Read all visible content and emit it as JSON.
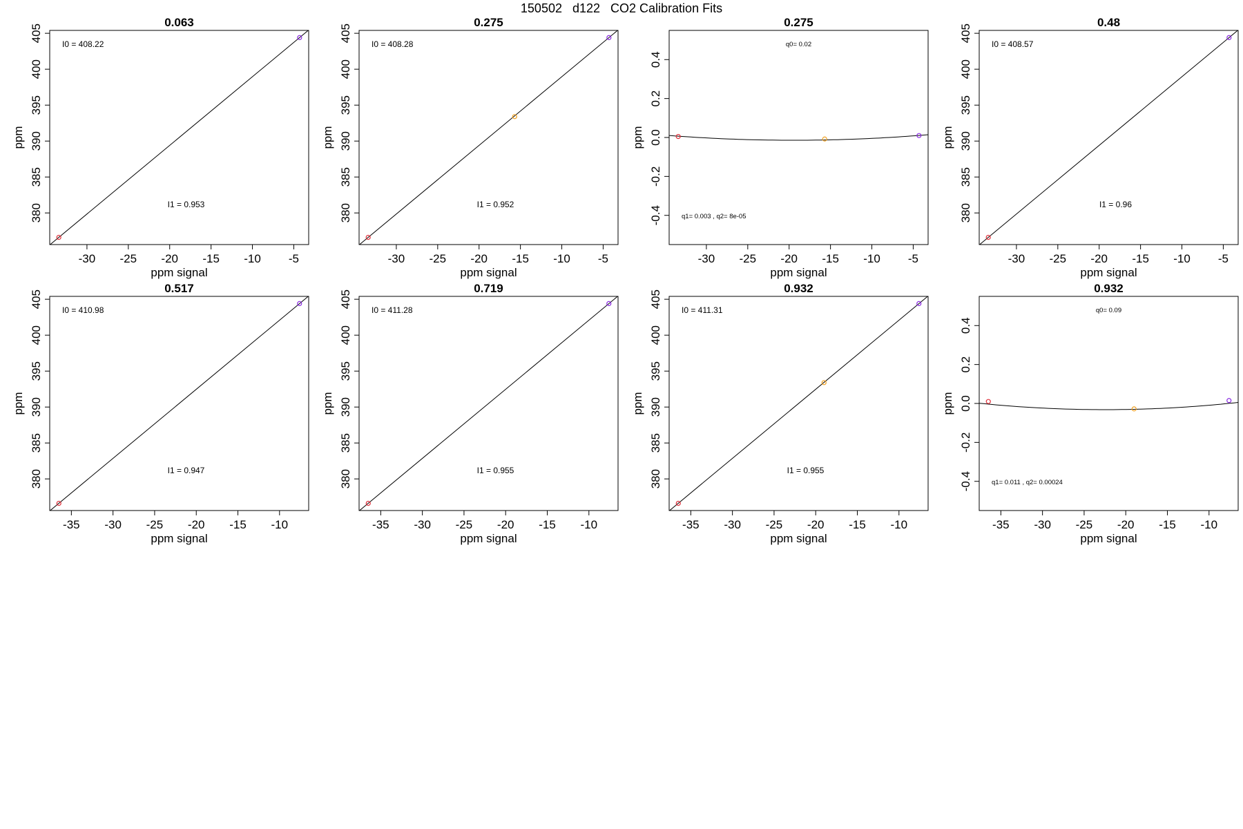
{
  "page": {
    "title": "150502   d122   CO2 Calibration Fits"
  },
  "chart_data": [
    {
      "type": "scatter",
      "kind": "linear",
      "title": "0.063",
      "xlabel": "ppm signal",
      "ylabel": "ppm",
      "xlim": [
        -34.5,
        -3.2
      ],
      "ylim": [
        375.6,
        405.4
      ],
      "xticks": [
        -30,
        -25,
        -20,
        -15,
        -10,
        -5
      ],
      "yticks": [
        380,
        385,
        390,
        395,
        400,
        405
      ],
      "points": [
        {
          "x": -33.4,
          "y": 376.6,
          "color": "#e0303a"
        },
        {
          "x": -4.3,
          "y": 404.4,
          "color": "#8a2be2"
        }
      ],
      "line": [
        [
          -34.5,
          375.55
        ],
        [
          -3.2,
          405.45
        ]
      ],
      "annotations": [
        "I0 =  408.22",
        "I1 =  0.953"
      ],
      "grid": false,
      "legend": "none"
    },
    {
      "type": "scatter",
      "kind": "linear",
      "title": "0.275",
      "xlabel": "ppm signal",
      "ylabel": "ppm",
      "xlim": [
        -34.5,
        -3.2
      ],
      "ylim": [
        375.6,
        405.4
      ],
      "xticks": [
        -30,
        -25,
        -20,
        -15,
        -10,
        -5
      ],
      "yticks": [
        380,
        385,
        390,
        395,
        400,
        405
      ],
      "points": [
        {
          "x": -33.4,
          "y": 376.6,
          "color": "#e0303a"
        },
        {
          "x": -15.7,
          "y": 393.4,
          "color": "#f0a020"
        },
        {
          "x": -4.3,
          "y": 404.4,
          "color": "#8a2be2"
        }
      ],
      "line": [
        [
          -34.5,
          375.55
        ],
        [
          -3.2,
          405.45
        ]
      ],
      "annotations": [
        "I0 =  408.28",
        "I1 =  0.952"
      ],
      "grid": false,
      "legend": "none"
    },
    {
      "type": "scatter",
      "kind": "quadratic",
      "title": "0.275",
      "xlabel": "ppm signal",
      "ylabel": "ppm",
      "xlim": [
        -34.5,
        -3.2
      ],
      "ylim": [
        -0.55,
        0.55
      ],
      "xticks": [
        -30,
        -25,
        -20,
        -15,
        -10,
        -5
      ],
      "yticks": [
        -0.4,
        -0.2,
        0.0,
        0.2,
        0.4
      ],
      "points": [
        {
          "x": -33.4,
          "y": 0.005,
          "color": "#e0303a"
        },
        {
          "x": -15.7,
          "y": -0.008,
          "color": "#f0a020"
        },
        {
          "x": -4.3,
          "y": 0.01,
          "color": "#8a2be2"
        }
      ],
      "curve": {
        "a": 0.000108,
        "b": 0.0042,
        "c": 0.0265
      },
      "annotations": [
        "q0= 0.02",
        "q1= 0.003 , q2= 8e-05"
      ],
      "grid": false,
      "legend": "none"
    },
    {
      "type": "scatter",
      "kind": "linear",
      "title": "0.48",
      "xlabel": "ppm signal",
      "ylabel": "ppm",
      "xlim": [
        -34.5,
        -3.2
      ],
      "ylim": [
        375.6,
        405.4
      ],
      "xticks": [
        -30,
        -25,
        -20,
        -15,
        -10,
        -5
      ],
      "yticks": [
        380,
        385,
        390,
        395,
        400,
        405
      ],
      "points": [
        {
          "x": -33.4,
          "y": 376.6,
          "color": "#e0303a"
        },
        {
          "x": -4.3,
          "y": 404.4,
          "color": "#8a2be2"
        }
      ],
      "line": [
        [
          -34.5,
          375.55
        ],
        [
          -3.2,
          405.45
        ]
      ],
      "annotations": [
        "I0 =  408.57",
        "I1 =  0.96"
      ],
      "grid": false,
      "legend": "none"
    },
    {
      "type": "scatter",
      "kind": "linear",
      "title": "0.517",
      "xlabel": "ppm signal",
      "ylabel": "ppm",
      "xlim": [
        -37.6,
        -6.5
      ],
      "ylim": [
        375.6,
        405.4
      ],
      "xticks": [
        -35,
        -30,
        -25,
        -20,
        -15,
        -10
      ],
      "yticks": [
        380,
        385,
        390,
        395,
        400,
        405
      ],
      "points": [
        {
          "x": -36.5,
          "y": 376.6,
          "color": "#e0303a"
        },
        {
          "x": -7.6,
          "y": 404.4,
          "color": "#8a2be2"
        }
      ],
      "line": [
        [
          -37.6,
          375.55
        ],
        [
          -6.5,
          405.45
        ]
      ],
      "annotations": [
        "I0 =  410.98",
        "I1 =  0.947"
      ],
      "grid": false,
      "legend": "none"
    },
    {
      "type": "scatter",
      "kind": "linear",
      "title": "0.719",
      "xlabel": "ppm signal",
      "ylabel": "ppm",
      "xlim": [
        -37.6,
        -6.5
      ],
      "ylim": [
        375.6,
        405.4
      ],
      "xticks": [
        -35,
        -30,
        -25,
        -20,
        -15,
        -10
      ],
      "yticks": [
        380,
        385,
        390,
        395,
        400,
        405
      ],
      "points": [
        {
          "x": -36.5,
          "y": 376.6,
          "color": "#e0303a"
        },
        {
          "x": -7.6,
          "y": 404.4,
          "color": "#8a2be2"
        }
      ],
      "line": [
        [
          -37.6,
          375.55
        ],
        [
          -6.5,
          405.45
        ]
      ],
      "annotations": [
        "I0 =  411.28",
        "I1 =  0.955"
      ],
      "grid": false,
      "legend": "none"
    },
    {
      "type": "scatter",
      "kind": "linear",
      "title": "0.932",
      "xlabel": "ppm signal",
      "ylabel": "ppm",
      "xlim": [
        -37.6,
        -6.5
      ],
      "ylim": [
        375.6,
        405.4
      ],
      "xticks": [
        -35,
        -30,
        -25,
        -20,
        -15,
        -10
      ],
      "yticks": [
        380,
        385,
        390,
        395,
        400,
        405
      ],
      "points": [
        {
          "x": -36.5,
          "y": 376.6,
          "color": "#e0303a"
        },
        {
          "x": -19.0,
          "y": 393.4,
          "color": "#f0a020"
        },
        {
          "x": -7.6,
          "y": 404.4,
          "color": "#8a2be2"
        }
      ],
      "line": [
        [
          -37.6,
          375.55
        ],
        [
          -6.5,
          405.45
        ]
      ],
      "annotations": [
        "I0 =  411.31",
        "I1 =  0.955"
      ],
      "grid": false,
      "legend": "none"
    },
    {
      "type": "scatter",
      "kind": "quadratic",
      "title": "0.932",
      "xlabel": "ppm signal",
      "ylabel": "ppm",
      "xlim": [
        -37.6,
        -6.5
      ],
      "ylim": [
        -0.55,
        0.55
      ],
      "xticks": [
        -35,
        -30,
        -25,
        -20,
        -15,
        -10
      ],
      "yticks": [
        -0.4,
        -0.2,
        0.0,
        0.2,
        0.4
      ],
      "points": [
        {
          "x": -36.5,
          "y": 0.01,
          "color": "#e0303a"
        },
        {
          "x": -19.0,
          "y": -0.028,
          "color": "#f0a020"
        },
        {
          "x": -7.6,
          "y": 0.015,
          "color": "#8a2be2"
        }
      ],
      "curve": {
        "a": 0.000145,
        "b": 0.00653,
        "c": 0.0416
      },
      "annotations": [
        "q0= 0.09",
        "q1= 0.011 , q2= 0.00024"
      ],
      "grid": false,
      "legend": "none"
    }
  ]
}
